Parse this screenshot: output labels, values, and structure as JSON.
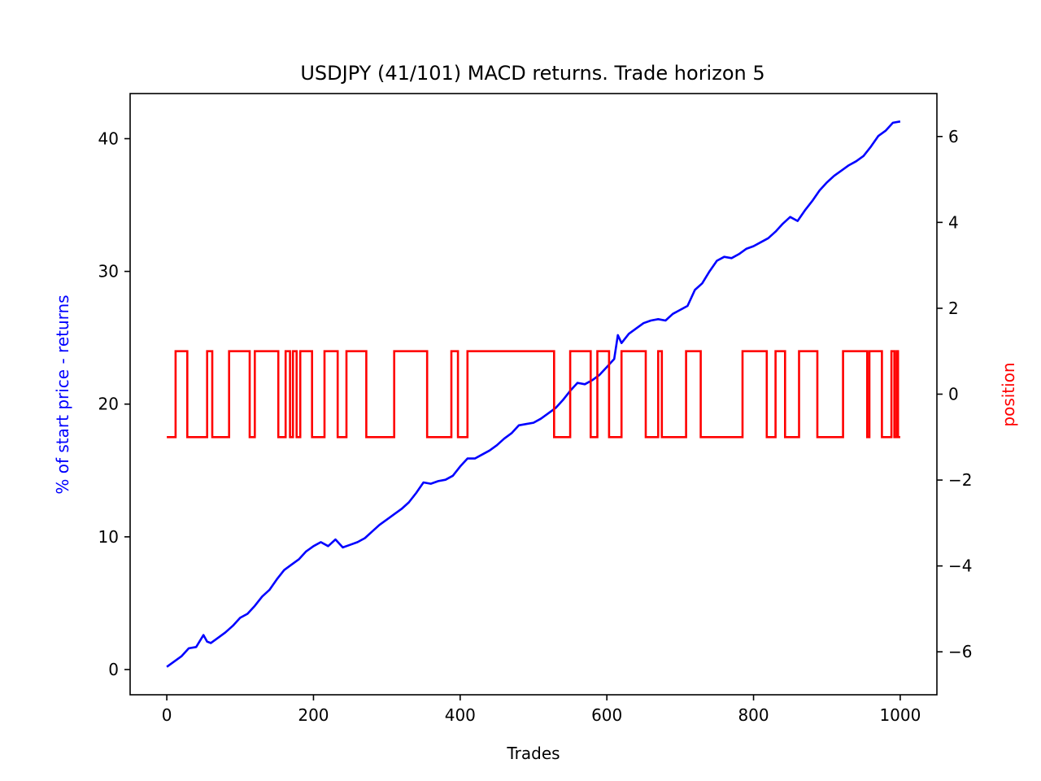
{
  "chart_data": {
    "type": "line",
    "title": "USDJPY (41/101) MACD returns. Trade horizon 5",
    "xlabel": "Trades",
    "ylabel": "% of start price - returns",
    "y2label": "position",
    "xlim": [
      -50,
      1050
    ],
    "ylim": [
      -1.9,
      43.4
    ],
    "y2lim": [
      -7.0,
      7.0
    ],
    "xticks": [
      0,
      200,
      400,
      600,
      800,
      1000
    ],
    "yticks": [
      0,
      10,
      20,
      30,
      40
    ],
    "y2ticks": [
      -6,
      -4,
      -2,
      0,
      2,
      4,
      6
    ],
    "grid": false,
    "colors": {
      "returns": "#0000ff",
      "position": "#ff0000",
      "axes": "#000000"
    },
    "series": [
      {
        "axis": "left",
        "x": [
          0,
          10,
          20,
          30,
          40,
          50,
          55,
          60,
          70,
          80,
          90,
          100,
          110,
          120,
          130,
          140,
          150,
          160,
          170,
          180,
          190,
          200,
          210,
          220,
          230,
          240,
          250,
          260,
          270,
          280,
          290,
          300,
          310,
          320,
          330,
          340,
          350,
          360,
          370,
          380,
          390,
          400,
          410,
          420,
          430,
          440,
          450,
          460,
          470,
          480,
          490,
          500,
          510,
          520,
          530,
          540,
          550,
          560,
          570,
          580,
          590,
          600,
          610,
          615,
          620,
          630,
          640,
          650,
          660,
          670,
          680,
          690,
          700,
          710,
          720,
          730,
          740,
          750,
          760,
          770,
          780,
          790,
          800,
          810,
          820,
          830,
          840,
          850,
          860,
          870,
          880,
          890,
          900,
          910,
          920,
          930,
          940,
          950,
          960,
          970,
          980,
          990,
          1000
        ],
        "y": [
          0.2,
          0.6,
          1.0,
          1.6,
          1.7,
          2.6,
          2.1,
          2.0,
          2.4,
          2.8,
          3.3,
          3.9,
          4.2,
          4.8,
          5.5,
          6.0,
          6.8,
          7.5,
          7.9,
          8.3,
          8.9,
          9.3,
          9.6,
          9.3,
          9.8,
          9.2,
          9.4,
          9.6,
          9.9,
          10.4,
          10.9,
          11.3,
          11.7,
          12.1,
          12.6,
          13.3,
          14.1,
          14.0,
          14.2,
          14.3,
          14.6,
          15.3,
          15.9,
          15.9,
          16.2,
          16.5,
          16.9,
          17.4,
          17.8,
          18.4,
          18.5,
          18.6,
          18.9,
          19.3,
          19.7,
          20.3,
          21.0,
          21.6,
          21.5,
          21.8,
          22.2,
          22.8,
          23.4,
          25.2,
          24.6,
          25.3,
          25.7,
          26.1,
          26.3,
          26.4,
          26.3,
          26.8,
          27.1,
          27.4,
          28.6,
          29.1,
          30.0,
          30.8,
          31.1,
          31.0,
          31.3,
          31.7,
          31.9,
          32.2,
          32.5,
          33.0,
          33.6,
          34.1,
          33.8,
          34.6,
          35.3,
          36.1,
          36.7,
          37.2,
          37.6,
          38.0,
          38.3,
          38.7,
          39.4,
          40.2,
          40.6,
          41.2,
          41.3
        ]
      },
      {
        "axis": "right",
        "segments": [
          [
            0,
            -1
          ],
          [
            12,
            1
          ],
          [
            28,
            -1
          ],
          [
            55,
            1
          ],
          [
            62,
            -1
          ],
          [
            85,
            1
          ],
          [
            113,
            -1
          ],
          [
            120,
            1
          ],
          [
            152,
            -1
          ],
          [
            162,
            1
          ],
          [
            168,
            -1
          ],
          [
            172,
            1
          ],
          [
            177,
            -1
          ],
          [
            182,
            1
          ],
          [
            198,
            -1
          ],
          [
            215,
            1
          ],
          [
            233,
            -1
          ],
          [
            245,
            1
          ],
          [
            272,
            -1
          ],
          [
            310,
            1
          ],
          [
            355,
            -1
          ],
          [
            388,
            1
          ],
          [
            397,
            -1
          ],
          [
            410,
            1
          ],
          [
            528,
            -1
          ],
          [
            550,
            1
          ],
          [
            578,
            -1
          ],
          [
            587,
            1
          ],
          [
            603,
            -1
          ],
          [
            620,
            1
          ],
          [
            653,
            -1
          ],
          [
            670,
            1
          ],
          [
            675,
            -1
          ],
          [
            708,
            1
          ],
          [
            728,
            -1
          ],
          [
            785,
            1
          ],
          [
            818,
            -1
          ],
          [
            830,
            1
          ],
          [
            843,
            -1
          ],
          [
            862,
            1
          ],
          [
            887,
            -1
          ],
          [
            922,
            1
          ],
          [
            955,
            -1
          ],
          [
            958,
            1
          ],
          [
            975,
            -1
          ],
          [
            988,
            1
          ],
          [
            992,
            -1
          ],
          [
            995,
            1
          ],
          [
            997,
            -1
          ],
          [
            1000,
            -1
          ]
        ]
      }
    ]
  }
}
